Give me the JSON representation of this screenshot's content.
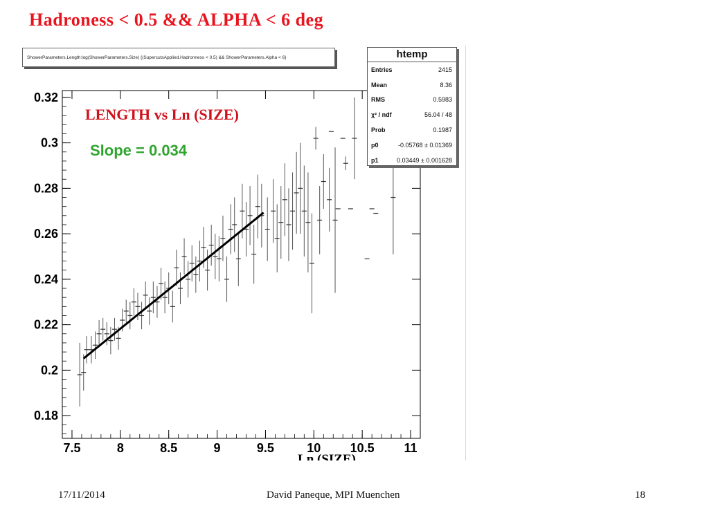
{
  "slide": {
    "title": "Hadroness < 0.5 && ALPHA < 6 deg",
    "footer_date": "17/11/2014",
    "footer_author": "David Paneque, MPI Muenchen",
    "footer_page": "18"
  },
  "histogram_title": "ShowerParameters.Length:log(ShowerParameters.Size) {(SupercutsApplied.Hadronness < 0.5) && ShowerParameters.Alpha < 6}",
  "stats": {
    "title": "htemp",
    "rows": [
      {
        "key": "Entries",
        "value": "2415"
      },
      {
        "key": "Mean",
        "value": "8.36"
      },
      {
        "key": "RMS",
        "value": "0.5983"
      },
      {
        "key": "χ² / ndf",
        "value": "56.04 / 48"
      },
      {
        "key": "Prob",
        "value": "0.1987"
      },
      {
        "key": "p0",
        "value": "-0.05768 ± 0.01369"
      },
      {
        "key": "p1",
        "value": "0.03449 ± 0.001628"
      }
    ]
  },
  "chart_data": {
    "type": "scatter",
    "title": "LENGTH vs Ln (SIZE)",
    "annotation": "Slope = 0.034",
    "xlabel": "Ln (SIZE)",
    "ylabel": "",
    "xlim": [
      7.4,
      11.1
    ],
    "ylim": [
      0.17,
      0.323
    ],
    "xticks": [
      "7.5",
      "8",
      "8.5",
      "9",
      "9.5",
      "10",
      "10.5",
      "11"
    ],
    "yticks": [
      "0.18",
      "0.2",
      "0.22",
      "0.24",
      "0.26",
      "0.28",
      "0.3",
      "0.32"
    ],
    "fit": {
      "p0": -0.05768,
      "p1": 0.03449,
      "x_range": [
        7.62,
        9.48
      ],
      "color": "#000000"
    },
    "points": [
      {
        "x": 7.58,
        "y": 0.198,
        "err": 0.014
      },
      {
        "x": 7.62,
        "y": 0.199,
        "err": 0.008
      },
      {
        "x": 7.65,
        "y": 0.209,
        "err": 0.006
      },
      {
        "x": 7.7,
        "y": 0.209,
        "err": 0.006
      },
      {
        "x": 7.74,
        "y": 0.211,
        "err": 0.006
      },
      {
        "x": 7.78,
        "y": 0.216,
        "err": 0.006
      },
      {
        "x": 7.82,
        "y": 0.218,
        "err": 0.005
      },
      {
        "x": 7.86,
        "y": 0.216,
        "err": 0.005
      },
      {
        "x": 7.9,
        "y": 0.213,
        "err": 0.006
      },
      {
        "x": 7.94,
        "y": 0.218,
        "err": 0.005
      },
      {
        "x": 7.98,
        "y": 0.214,
        "err": 0.005
      },
      {
        "x": 8.02,
        "y": 0.222,
        "err": 0.005
      },
      {
        "x": 8.06,
        "y": 0.226,
        "err": 0.005
      },
      {
        "x": 8.1,
        "y": 0.224,
        "err": 0.006
      },
      {
        "x": 8.14,
        "y": 0.23,
        "err": 0.006
      },
      {
        "x": 8.18,
        "y": 0.228,
        "err": 0.006
      },
      {
        "x": 8.22,
        "y": 0.224,
        "err": 0.006
      },
      {
        "x": 8.26,
        "y": 0.233,
        "err": 0.006
      },
      {
        "x": 8.3,
        "y": 0.226,
        "err": 0.006
      },
      {
        "x": 8.34,
        "y": 0.232,
        "err": 0.007
      },
      {
        "x": 8.38,
        "y": 0.23,
        "err": 0.007
      },
      {
        "x": 8.42,
        "y": 0.238,
        "err": 0.007
      },
      {
        "x": 8.46,
        "y": 0.232,
        "err": 0.007
      },
      {
        "x": 8.5,
        "y": 0.236,
        "err": 0.007
      },
      {
        "x": 8.54,
        "y": 0.228,
        "err": 0.007
      },
      {
        "x": 8.58,
        "y": 0.245,
        "err": 0.008
      },
      {
        "x": 8.62,
        "y": 0.236,
        "err": 0.007
      },
      {
        "x": 8.66,
        "y": 0.25,
        "err": 0.008
      },
      {
        "x": 8.7,
        "y": 0.24,
        "err": 0.008
      },
      {
        "x": 8.74,
        "y": 0.247,
        "err": 0.008
      },
      {
        "x": 8.78,
        "y": 0.242,
        "err": 0.008
      },
      {
        "x": 8.82,
        "y": 0.248,
        "err": 0.009
      },
      {
        "x": 8.86,
        "y": 0.254,
        "err": 0.009
      },
      {
        "x": 8.9,
        "y": 0.244,
        "err": 0.009
      },
      {
        "x": 8.94,
        "y": 0.255,
        "err": 0.009
      },
      {
        "x": 8.98,
        "y": 0.25,
        "err": 0.01
      },
      {
        "x": 9.02,
        "y": 0.249,
        "err": 0.01
      },
      {
        "x": 9.06,
        "y": 0.258,
        "err": 0.01
      },
      {
        "x": 9.1,
        "y": 0.24,
        "err": 0.01
      },
      {
        "x": 9.14,
        "y": 0.262,
        "err": 0.011
      },
      {
        "x": 9.18,
        "y": 0.264,
        "err": 0.012
      },
      {
        "x": 9.22,
        "y": 0.249,
        "err": 0.012
      },
      {
        "x": 9.26,
        "y": 0.27,
        "err": 0.012
      },
      {
        "x": 9.3,
        "y": 0.262,
        "err": 0.012
      },
      {
        "x": 9.34,
        "y": 0.268,
        "err": 0.013
      },
      {
        "x": 9.38,
        "y": 0.251,
        "err": 0.013
      },
      {
        "x": 9.42,
        "y": 0.272,
        "err": 0.014
      },
      {
        "x": 9.46,
        "y": 0.268,
        "err": 0.014
      },
      {
        "x": 9.52,
        "y": 0.262,
        "err": 0.014
      },
      {
        "x": 9.58,
        "y": 0.27,
        "err": 0.014
      },
      {
        "x": 9.62,
        "y": 0.258,
        "err": 0.015
      },
      {
        "x": 9.66,
        "y": 0.265,
        "err": 0.016
      },
      {
        "x": 9.7,
        "y": 0.275,
        "err": 0.016
      },
      {
        "x": 9.74,
        "y": 0.264,
        "err": 0.016
      },
      {
        "x": 9.78,
        "y": 0.27,
        "err": 0.017
      },
      {
        "x": 9.82,
        "y": 0.278,
        "err": 0.018
      },
      {
        "x": 9.86,
        "y": 0.28,
        "err": 0.02
      },
      {
        "x": 9.9,
        "y": 0.27,
        "err": 0.02
      },
      {
        "x": 9.94,
        "y": 0.265,
        "err": 0.022
      },
      {
        "x": 9.98,
        "y": 0.247,
        "err": 0.022
      },
      {
        "x": 10.02,
        "y": 0.302,
        "err": 0.005
      },
      {
        "x": 10.06,
        "y": 0.266,
        "err": 0.015
      },
      {
        "x": 10.1,
        "y": 0.283,
        "err": 0.012
      },
      {
        "x": 10.16,
        "y": 0.275,
        "err": 0.014
      },
      {
        "x": 10.22,
        "y": 0.266,
        "err": 0.032
      },
      {
        "x": 10.25,
        "y": 0.271,
        "err": 0.0
      },
      {
        "x": 10.3,
        "y": 0.302,
        "err": 0.0
      },
      {
        "x": 10.33,
        "y": 0.291,
        "err": 0.003
      },
      {
        "x": 10.38,
        "y": 0.271,
        "err": 0.0
      },
      {
        "x": 10.42,
        "y": 0.302,
        "err": 0.018
      },
      {
        "x": 10.55,
        "y": 0.249,
        "err": 0.0
      },
      {
        "x": 10.6,
        "y": 0.271,
        "err": 0.0
      },
      {
        "x": 10.64,
        "y": 0.269,
        "err": 0.0
      },
      {
        "x": 10.82,
        "y": 0.276,
        "err": 0.025
      },
      {
        "x": 10.18,
        "y": 0.305,
        "err": 0.0
      }
    ]
  }
}
